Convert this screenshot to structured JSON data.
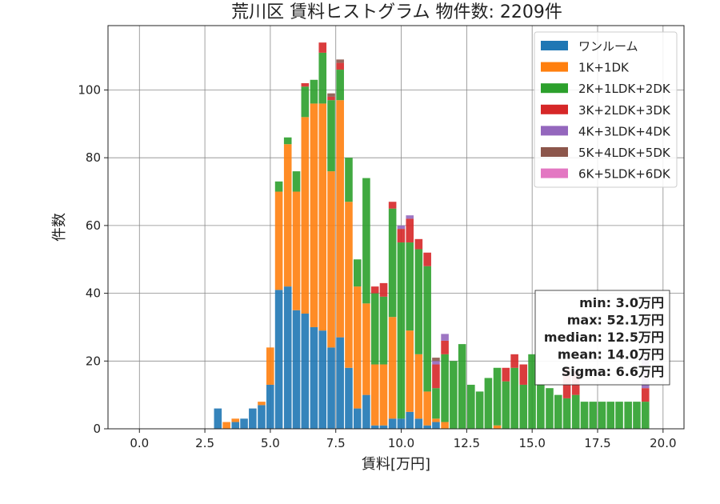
{
  "chart_data": {
    "type": "bar",
    "stacked": true,
    "title": "荒川区 賃料ヒストグラム  物件数: 2209件",
    "xlabel": "賃料[万円]",
    "ylabel": "件数",
    "xlim": [
      -1.2,
      20.8
    ],
    "ylim": [
      0,
      119
    ],
    "xticks": [
      0.0,
      2.5,
      5.0,
      7.5,
      10.0,
      12.5,
      15.0,
      17.5,
      20.0
    ],
    "xtick_labels": [
      "0.0",
      "2.5",
      "5.0",
      "7.5",
      "10.0",
      "12.5",
      "15.0",
      "17.5",
      "20.0"
    ],
    "yticks": [
      0,
      20,
      40,
      60,
      80,
      100
    ],
    "ytick_labels": [
      "0",
      "20",
      "40",
      "60",
      "80",
      "100"
    ],
    "grid": true,
    "legend_position": "top-right",
    "bin_width": 0.333,
    "bin_starts": [
      2.85,
      3.18,
      3.52,
      3.85,
      4.18,
      4.52,
      4.85,
      5.18,
      5.52,
      5.85,
      6.18,
      6.52,
      6.85,
      7.18,
      7.52,
      7.85,
      8.18,
      8.52,
      8.85,
      9.18,
      9.52,
      9.85,
      10.18,
      10.52,
      10.85,
      11.18,
      11.52,
      11.85,
      12.18,
      12.52,
      12.85,
      13.18,
      13.52,
      13.85,
      14.18,
      14.52,
      14.85,
      15.18,
      15.52,
      15.85,
      16.18,
      16.52,
      16.85,
      17.18,
      17.52,
      17.85,
      18.18,
      18.52,
      18.85,
      19.18
    ],
    "series": [
      {
        "name": "ワンルーム",
        "color": "#1f77b4",
        "values": [
          6,
          0,
          2,
          3,
          6,
          7,
          13,
          41,
          42,
          35,
          34,
          30,
          29,
          24,
          27,
          18,
          6,
          10,
          1,
          1,
          3,
          3,
          5,
          3,
          1,
          2,
          0,
          0,
          0,
          0,
          0,
          0,
          0,
          0,
          0,
          0,
          0,
          0,
          0,
          0,
          0,
          0,
          0,
          0,
          0,
          0,
          0,
          0,
          0,
          0
        ]
      },
      {
        "name": "1K+1DK",
        "color": "#ff7f0e",
        "values": [
          0,
          2,
          1,
          0,
          0,
          1,
          11,
          29,
          42,
          35,
          58,
          66,
          67,
          52,
          70,
          49,
          36,
          27,
          18,
          18,
          30,
          0,
          24,
          19,
          10,
          1,
          2,
          0,
          0,
          0,
          0,
          0,
          1,
          0,
          0,
          0,
          0,
          0,
          0,
          0,
          0,
          0,
          0,
          0,
          0,
          0,
          0,
          0,
          0,
          0
        ]
      },
      {
        "name": "2K+1LDK+2DK",
        "color": "#2ca02c",
        "values": [
          0,
          0,
          0,
          0,
          0,
          0,
          0,
          3,
          2,
          6,
          9,
          7,
          15,
          21,
          9,
          13,
          8,
          37,
          21,
          20,
          32,
          52,
          26,
          31,
          37,
          9,
          20,
          20,
          25,
          13,
          11,
          15,
          17,
          14,
          18,
          13,
          22,
          13,
          12,
          10,
          9,
          10,
          8,
          8,
          8,
          8,
          8,
          8,
          8,
          8
        ]
      },
      {
        "name": "3K+2LDK+3DK",
        "color": "#d62728",
        "values": [
          0,
          0,
          0,
          0,
          0,
          0,
          0,
          0,
          0,
          0,
          1,
          0,
          3,
          1,
          2,
          0,
          0,
          0,
          2,
          4,
          2,
          4,
          7,
          3,
          4,
          7,
          4,
          0,
          0,
          0,
          0,
          0,
          0,
          4,
          4,
          6,
          0,
          0,
          0,
          0,
          9,
          7,
          0,
          0,
          0,
          0,
          0,
          0,
          0,
          4
        ]
      },
      {
        "name": "4K+3LDK+4DK",
        "color": "#9467bd",
        "values": [
          0,
          0,
          0,
          0,
          0,
          0,
          0,
          0,
          0,
          0,
          0,
          0,
          0,
          0,
          0,
          0,
          0,
          0,
          0,
          0,
          0,
          1,
          1,
          0,
          0,
          1,
          2,
          0,
          0,
          0,
          0,
          0,
          0,
          0,
          0,
          0,
          0,
          0,
          0,
          0,
          0,
          0,
          0,
          0,
          0,
          0,
          0,
          0,
          0,
          9
        ]
      },
      {
        "name": "5K+4LDK+5DK",
        "color": "#8c564b",
        "values": [
          0,
          0,
          0,
          0,
          0,
          0,
          0,
          0,
          0,
          0,
          0,
          0,
          0,
          1,
          1,
          0,
          0,
          0,
          0,
          0,
          0,
          0,
          0,
          0,
          0,
          1,
          0,
          0,
          0,
          0,
          0,
          0,
          0,
          0,
          0,
          0,
          0,
          0,
          0,
          0,
          0,
          0,
          0,
          0,
          0,
          0,
          0,
          0,
          0,
          0
        ]
      },
      {
        "name": "6K+5LDK+6DK",
        "color": "#e377c2",
        "values": [
          0,
          0,
          0,
          0,
          0,
          0,
          0,
          0,
          0,
          0,
          0,
          0,
          0,
          0,
          0,
          0,
          0,
          0,
          0,
          0,
          0,
          0,
          0,
          0,
          0,
          0,
          0,
          0,
          0,
          0,
          0,
          0,
          0,
          0,
          0,
          0,
          0,
          0,
          0,
          0,
          0,
          0,
          0,
          0,
          0,
          0,
          0,
          0,
          0,
          0
        ]
      }
    ],
    "stats_box": {
      "lines": [
        "min: 3.0万円",
        "max: 52.1万円",
        "median: 12.5万円",
        "mean: 14.0万円",
        "Sigma: 6.6万円"
      ]
    }
  }
}
